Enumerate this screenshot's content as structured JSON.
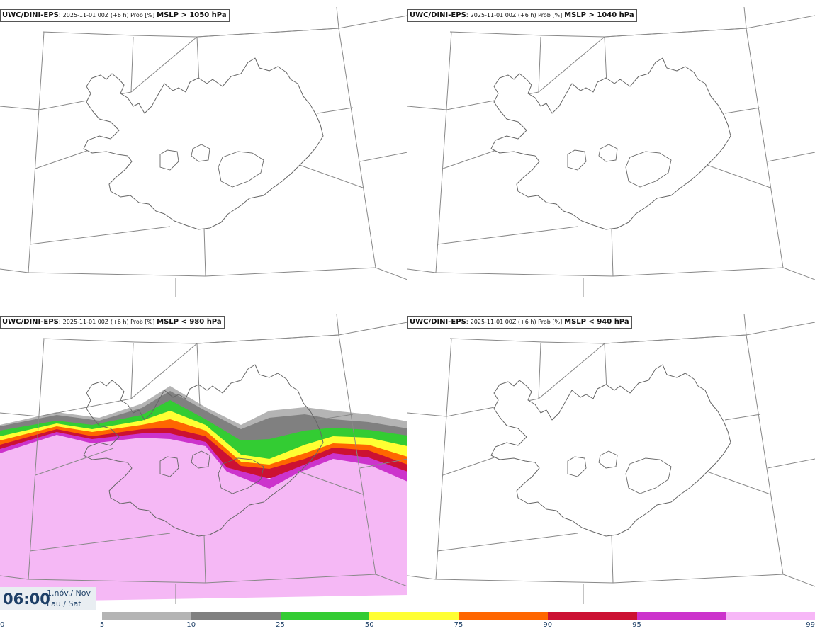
{
  "panels": [
    {
      "model": "UWC/DINI-EPS",
      "run": "2025-11-01 00Z (+6 h) Prob [%]",
      "threshold": "MSLP > 1050 hPa",
      "filled": false
    },
    {
      "model": "UWC/DINI-EPS",
      "run": "2025-11-01 00Z (+6 h) Prob [%]",
      "threshold": "MSLP > 1040 hPa",
      "filled": false
    },
    {
      "model": "UWC/DINI-EPS",
      "run": "2025-11-01 00Z (+6 h) Prob [%]",
      "threshold": "MSLP < 980 hPa",
      "filled": true
    },
    {
      "model": "UWC/DINI-EPS",
      "run": "2025-11-01 00Z (+6 h) Prob [%]",
      "threshold": "MSLP < 940 hPa",
      "filled": false
    }
  ],
  "valid_time": {
    "time": "06:00",
    "date_line1": "1.nóv./ Nov",
    "date_line2": "Lau./ Sat"
  },
  "colorbar": {
    "colors": [
      "#b4b4b4",
      "#808080",
      "#33cc33",
      "#ffff33",
      "#ff6600",
      "#cc1133",
      "#cc33cc",
      "#f7b7f7"
    ],
    "ticks": [
      "0",
      "5",
      "10",
      "25",
      "50",
      "75",
      "90",
      "95",
      "99"
    ]
  },
  "colors": {
    "probability_max": "#f5b8f5",
    "coast": "#666666",
    "grid": "#888888"
  }
}
